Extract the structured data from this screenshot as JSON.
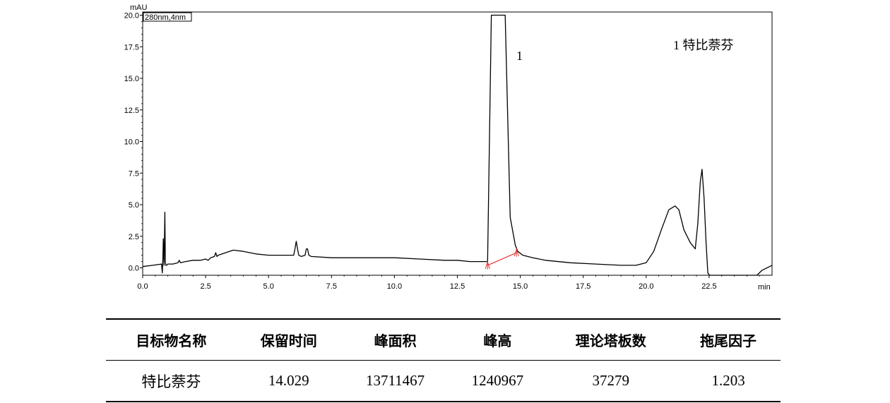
{
  "chart_data": {
    "type": "line",
    "y_unit": "mAU",
    "x_unit": "min",
    "detector_label": "280nm,4nm",
    "xlim": [
      0.0,
      25.0
    ],
    "ylim": [
      -0.4,
      20.0
    ],
    "x_ticks": [
      "0.0",
      "2.5",
      "5.0",
      "7.5",
      "10.0",
      "12.5",
      "15.0",
      "17.5",
      "20.0",
      "22.5"
    ],
    "y_ticks": [
      "0.0",
      "2.5",
      "5.0",
      "7.5",
      "10.0",
      "12.5",
      "15.0",
      "17.5",
      "20.0"
    ],
    "peak_label": "1",
    "legend_text": "1  特比萘芬",
    "series": [
      {
        "x": [
          0.0,
          0.4,
          0.75,
          0.78,
          0.8,
          0.82,
          0.85,
          0.88,
          0.9,
          0.92,
          0.95,
          1.0,
          1.2,
          1.4,
          1.45,
          1.5,
          1.7,
          2.0,
          2.3,
          2.5,
          2.6,
          2.7,
          2.85,
          2.9,
          2.95,
          3.0,
          3.3,
          3.6,
          4.0,
          4.5,
          5.0,
          5.5,
          6.0,
          6.05,
          6.1,
          6.15,
          6.2,
          6.3,
          6.45,
          6.5,
          6.55,
          6.6,
          6.7,
          7.5,
          8.5,
          10.0,
          11.0,
          12.0,
          12.5,
          13.0,
          13.5,
          13.7,
          13.85,
          13.95,
          14.25,
          14.4,
          14.6,
          14.8,
          14.9,
          15.1,
          15.5,
          16.0,
          17.0,
          18.0,
          19.0,
          19.6,
          20.0,
          20.3,
          20.6,
          20.9,
          21.15,
          21.3,
          21.5,
          21.75,
          21.95,
          22.05,
          22.15,
          22.22,
          22.3,
          22.38,
          22.45,
          22.52,
          24.4,
          24.6,
          25.0
        ],
        "y": [
          0.1,
          0.2,
          0.3,
          -0.4,
          0.6,
          2.3,
          0.2,
          4.4,
          0.5,
          0.2,
          0.2,
          0.3,
          0.3,
          0.4,
          0.6,
          0.4,
          0.5,
          0.6,
          0.6,
          0.7,
          0.6,
          0.8,
          0.9,
          1.2,
          0.9,
          1.0,
          1.2,
          1.4,
          1.3,
          1.1,
          1.0,
          1.0,
          1.0,
          1.5,
          2.1,
          1.5,
          1.0,
          0.9,
          1.0,
          1.5,
          1.5,
          1.0,
          0.9,
          0.8,
          0.8,
          0.8,
          0.7,
          0.6,
          0.6,
          0.5,
          0.5,
          0.5,
          20.0,
          20.0,
          20.0,
          20.0,
          4.0,
          1.8,
          1.3,
          1.0,
          0.8,
          0.6,
          0.4,
          0.3,
          0.2,
          0.2,
          0.4,
          1.3,
          3.0,
          4.6,
          4.9,
          4.6,
          3.0,
          2.0,
          1.5,
          3.5,
          6.8,
          7.8,
          5.5,
          2.0,
          -0.4,
          -0.6,
          -0.6,
          -0.2,
          0.2
        ]
      }
    ],
    "integration_baseline": {
      "x": [
        13.7,
        14.85
      ],
      "y": [
        0.2,
        1.2
      ]
    }
  },
  "table": {
    "headers": [
      "目标物名称",
      "保留时间",
      "峰面积",
      "峰高",
      "理论塔板数",
      "拖尾因子"
    ],
    "rows": [
      [
        "特比萘芬",
        "14.029",
        "13711467",
        "1240967",
        "37279",
        "1.203"
      ]
    ]
  }
}
